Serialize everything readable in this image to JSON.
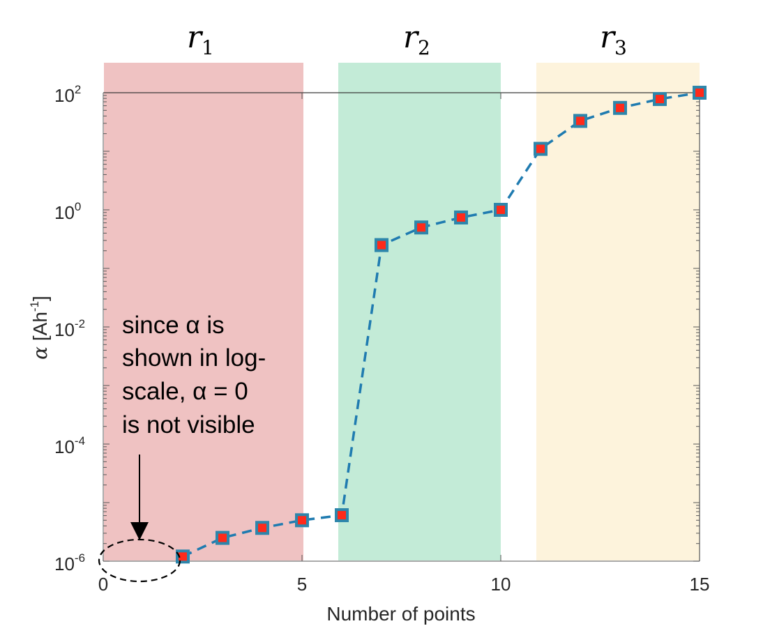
{
  "chart_data": {
    "type": "line",
    "title": "",
    "xlabel": "Number of points",
    "ylabel": "α [Ah^-1]",
    "ylabel_parts": {
      "symbol": "α",
      "unit_open": "[Ah",
      "unit_sup": "-1",
      "unit_close": "]"
    },
    "yscale": "log",
    "xlim": [
      0,
      15
    ],
    "ylim": [
      1e-06,
      100
    ],
    "x_ticks": [
      "0",
      "5",
      "10",
      "15"
    ],
    "y_ticks": [
      {
        "base": "10",
        "exp": "2"
      },
      {
        "base": "10",
        "exp": "0"
      },
      {
        "base": "10",
        "exp": "-2"
      },
      {
        "base": "10",
        "exp": "-4"
      },
      {
        "base": "10",
        "exp": "-6"
      }
    ],
    "grid": false,
    "series": [
      {
        "name": "alpha",
        "line_style": "dashed",
        "line_color": "#1f77b4",
        "marker": "square",
        "marker_edge_color": "#2e86ab",
        "marker_face_color": "#ff2a1a",
        "x": [
          2,
          3,
          4,
          5,
          6,
          7,
          8,
          9,
          10,
          11,
          12,
          13,
          14,
          15
        ],
        "values": [
          1.2e-06,
          2.5e-06,
          3.7e-06,
          5e-06,
          6.1e-06,
          0.25,
          0.5,
          0.74,
          1.0,
          11,
          33,
          55,
          78,
          100
        ]
      }
    ],
    "regions": [
      {
        "label": "r",
        "sub": "1",
        "x_start": 0,
        "x_end": 5,
        "color": "#efc2c2"
      },
      {
        "label": "r",
        "sub": "2",
        "x_start": 6,
        "x_end": 10,
        "color": "#c3ebd7"
      },
      {
        "label": "r",
        "sub": "3",
        "x_start": 11,
        "x_end": 15,
        "color": "#fdf3dc"
      }
    ],
    "annotations": [
      {
        "lines": [
          "since α is",
          "shown in log-",
          "scale, α = 0",
          "is not visible"
        ],
        "arrow_target": {
          "x": 1,
          "y": 1e-06
        },
        "ellipse_around_x": [
          0,
          2
        ]
      }
    ]
  }
}
